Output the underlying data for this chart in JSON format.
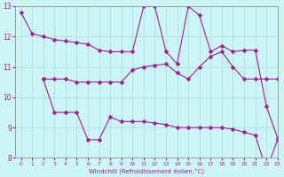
{
  "line1_x": [
    0,
    1,
    2,
    3,
    4,
    5,
    6,
    7,
    8,
    9,
    10,
    11,
    12,
    13,
    14,
    15,
    16,
    17,
    18,
    19,
    20,
    21,
    22,
    23
  ],
  "line1_y": [
    12.8,
    12.1,
    12.0,
    11.9,
    11.85,
    11.8,
    11.75,
    11.55,
    11.5,
    11.5,
    11.5,
    13.0,
    13.0,
    11.5,
    11.1,
    13.0,
    12.7,
    11.5,
    11.7,
    11.5,
    11.55,
    11.55,
    9.7,
    8.65
  ],
  "line2_x": [
    2,
    3,
    4,
    5,
    6,
    7,
    8,
    9,
    10,
    11,
    12,
    13,
    14,
    15,
    16,
    17,
    18,
    19,
    20,
    21,
    22,
    23
  ],
  "line2_y": [
    10.6,
    10.6,
    10.6,
    10.5,
    10.5,
    10.5,
    10.5,
    10.5,
    10.9,
    11.0,
    11.05,
    11.1,
    10.8,
    10.6,
    11.0,
    11.35,
    11.5,
    11.0,
    10.6,
    10.6,
    10.6,
    10.6
  ],
  "line3_x": [
    2,
    3,
    4,
    5,
    6,
    7,
    8,
    9,
    10,
    11,
    12,
    13,
    14,
    15,
    16,
    17,
    18,
    19,
    20,
    21,
    22,
    23
  ],
  "line3_y": [
    10.6,
    9.5,
    9.5,
    9.5,
    8.6,
    8.6,
    9.35,
    9.2,
    9.2,
    9.2,
    9.15,
    9.1,
    9.0,
    9.0,
    9.0,
    9.0,
    9.0,
    8.95,
    8.85,
    8.75,
    7.6,
    8.6
  ],
  "line_color": "#9b1f8e",
  "bg_color": "#cef5f5",
  "grid_color": "#a8dada",
  "xlabel": "Windchill (Refroidissement éolien,°C)",
  "ylim": [
    8,
    13
  ],
  "xlim": [
    -0.5,
    23
  ],
  "yticks": [
    8,
    9,
    10,
    11,
    12,
    13
  ],
  "xticks": [
    0,
    1,
    2,
    3,
    4,
    5,
    6,
    7,
    8,
    9,
    10,
    11,
    12,
    13,
    14,
    15,
    16,
    17,
    18,
    19,
    20,
    21,
    22,
    23
  ]
}
